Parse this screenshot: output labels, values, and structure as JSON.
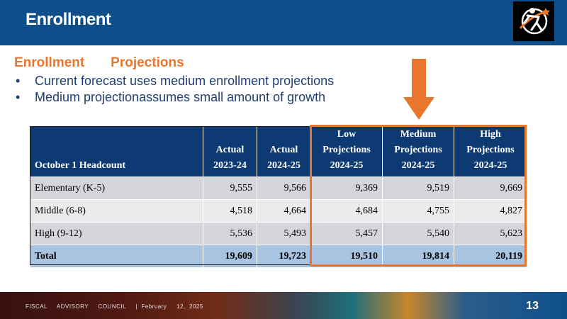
{
  "header": {
    "title": "Enrollment"
  },
  "section": {
    "heading": "Enrollment       Projections",
    "bullets": [
      "Current forecast uses medium  enrollment  projections",
      "Medium  projectionassumes  small  amount  of growth"
    ],
    "bullet_glyph": "•"
  },
  "table": {
    "columns": [
      {
        "line1": "",
        "line2": "",
        "line3": "October   1 Headcount"
      },
      {
        "line1": "",
        "line2": "Actual",
        "line3": "2023-24"
      },
      {
        "line1": "",
        "line2": "Actual",
        "line3": "2024-25"
      },
      {
        "line1": "Low",
        "line2": "Projections",
        "line3": "2024-25"
      },
      {
        "line1": "Medium",
        "line2": "Projections",
        "line3": "2024-25"
      },
      {
        "line1": "High",
        "line2": "Projections",
        "line3": "2024-25"
      }
    ],
    "rows": [
      {
        "label": "Elementary  (K-5)",
        "values": [
          "9,555",
          "9,566",
          "9,369",
          "9,519",
          "9,669"
        ]
      },
      {
        "label": "Middle (6-8)",
        "values": [
          "4,518",
          "4,664",
          "4,684",
          "4,755",
          "4,827"
        ]
      },
      {
        "label": "High  (9-12)",
        "values": [
          "5,536",
          "5,493",
          "5,457",
          "5,540",
          "5,623"
        ]
      }
    ],
    "total": {
      "label": "Total",
      "values": [
        "19,609",
        "19,723",
        "19,510",
        "19,814",
        "20,119"
      ]
    }
  },
  "footer": {
    "text": "FISCAL     ADVISORY     COUNCIL     |  February     12,  2025",
    "page_number": "13"
  },
  "colors": {
    "header_bg": "#0e4f8b",
    "accent_orange": "#e8762d",
    "table_header_bg": "#0e3a73",
    "total_row_bg": "#a8c4e0",
    "body_text": "#1f3f74"
  }
}
